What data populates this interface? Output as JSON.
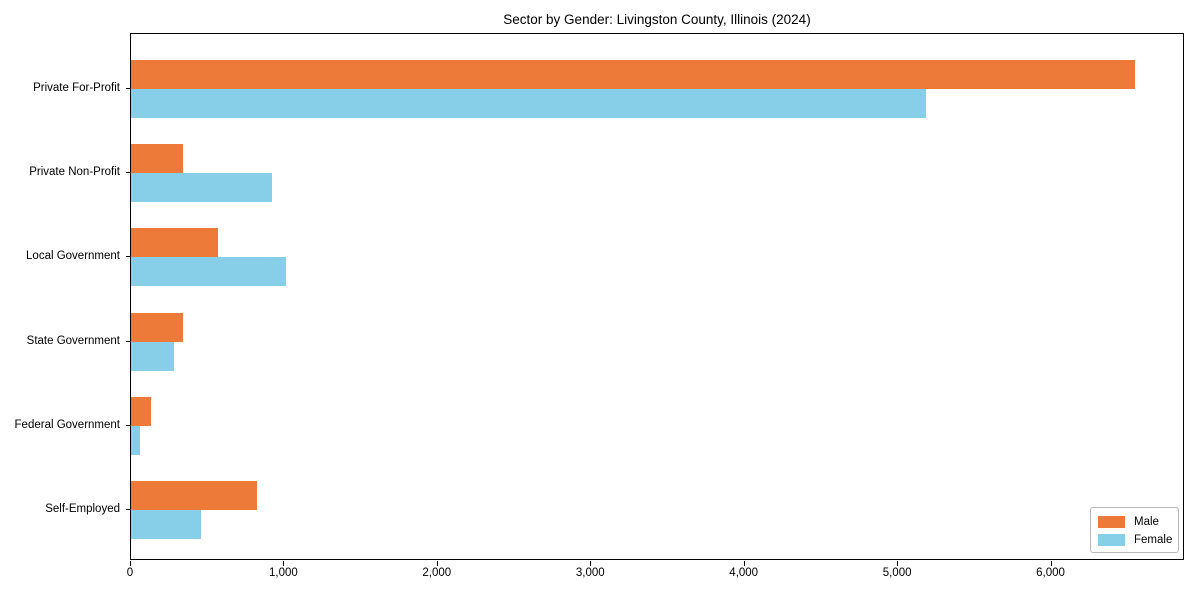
{
  "chart_data": {
    "type": "bar",
    "orientation": "horizontal",
    "title": "Sector by Gender: Livingston County, Illinois (2024)",
    "categories": [
      "Private For-Profit",
      "Private Non-Profit",
      "Local Government",
      "State Government",
      "Federal Government",
      "Self-Employed"
    ],
    "series": [
      {
        "name": "Male",
        "color": "#ed7a39",
        "values": [
          6545,
          338,
          566,
          337,
          130,
          819
        ]
      },
      {
        "name": "Female",
        "color": "#87cee9",
        "values": [
          5180,
          921,
          1011,
          281,
          59,
          456
        ]
      }
    ],
    "xlabel": "",
    "ylabel": "",
    "x_ticks": [
      0,
      1000,
      2000,
      3000,
      4000,
      5000,
      6000
    ],
    "x_tick_labels": [
      "0",
      "1,000",
      "2,000",
      "3,000",
      "4,000",
      "5,000",
      "6,000"
    ],
    "xlim": [
      0,
      6870
    ],
    "grid": false,
    "legend_position": "lower right",
    "bar_order_note": "Male bar drawn above Female bar in each category group"
  }
}
